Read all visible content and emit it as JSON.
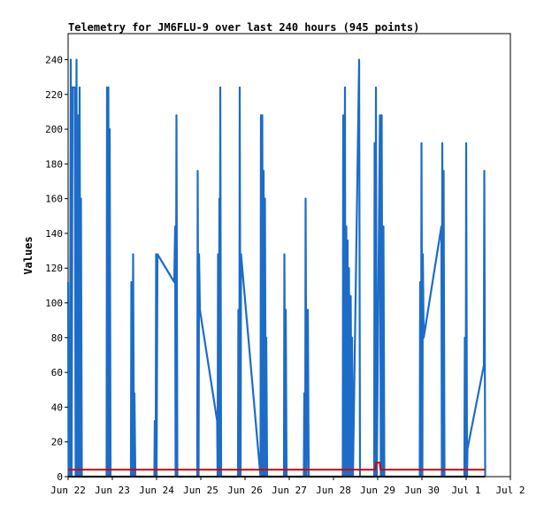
{
  "chart_data": {
    "type": "line",
    "title": "Telemetry for JM6FLU-9 over last 240 hours (945 points)",
    "xlabel": "",
    "ylabel": "Values",
    "ylim": [
      0,
      255
    ],
    "yticks": [
      0,
      20,
      40,
      60,
      80,
      100,
      120,
      140,
      160,
      180,
      200,
      220,
      240
    ],
    "xlim": [
      0,
      10
    ],
    "xticks": [
      {
        "label": "Jun 22",
        "x": 0
      },
      {
        "label": "Jun 23",
        "x": 1
      },
      {
        "label": "Jun 24",
        "x": 2
      },
      {
        "label": "Jun 25",
        "x": 3
      },
      {
        "label": "Jun 26",
        "x": 4
      },
      {
        "label": "Jun 27",
        "x": 5
      },
      {
        "label": "Jun 28",
        "x": 6
      },
      {
        "label": "Jun 29",
        "x": 7
      },
      {
        "label": "Jun 30",
        "x": 8
      },
      {
        "label": "Jul 1",
        "x": 9
      },
      {
        "label": "Jul 2",
        "x": 10
      }
    ],
    "grid": false,
    "series": [
      {
        "color": "#1c6cc8",
        "points": [
          [
            0.0,
            112
          ],
          [
            0.01,
            0
          ],
          [
            0.03,
            80
          ],
          [
            0.04,
            0
          ],
          [
            0.06,
            240
          ],
          [
            0.08,
            0
          ],
          [
            0.1,
            224
          ],
          [
            0.15,
            224
          ],
          [
            0.17,
            0
          ],
          [
            0.19,
            240
          ],
          [
            0.21,
            0
          ],
          [
            0.23,
            208
          ],
          [
            0.25,
            0
          ],
          [
            0.26,
            224
          ],
          [
            0.28,
            0
          ],
          [
            0.29,
            160
          ],
          [
            0.31,
            0
          ],
          [
            0.87,
            0
          ],
          [
            0.88,
            224
          ],
          [
            0.9,
            0
          ],
          [
            0.91,
            224
          ],
          [
            0.93,
            0
          ],
          [
            0.94,
            200
          ],
          [
            0.96,
            0
          ],
          [
            1.42,
            0
          ],
          [
            1.43,
            112
          ],
          [
            1.45,
            0
          ],
          [
            1.47,
            128
          ],
          [
            1.49,
            0
          ],
          [
            1.5,
            48
          ],
          [
            1.52,
            0
          ],
          [
            1.95,
            0
          ],
          [
            1.96,
            32
          ],
          [
            1.98,
            0
          ],
          [
            1.99,
            128
          ],
          [
            2.0,
            0
          ],
          [
            2.02,
            128
          ],
          [
            2.4,
            112
          ],
          [
            2.42,
            144
          ],
          [
            2.43,
            0
          ],
          [
            2.45,
            208
          ],
          [
            2.47,
            0
          ],
          [
            2.92,
            0
          ],
          [
            2.93,
            176
          ],
          [
            2.95,
            0
          ],
          [
            2.96,
            128
          ],
          [
            2.98,
            96
          ],
          [
            3.37,
            32
          ],
          [
            3.38,
            0
          ],
          [
            3.39,
            128
          ],
          [
            3.41,
            0
          ],
          [
            3.42,
            160
          ],
          [
            3.43,
            0
          ],
          [
            3.44,
            224
          ],
          [
            3.46,
            0
          ],
          [
            3.84,
            0
          ],
          [
            3.85,
            96
          ],
          [
            3.87,
            0
          ],
          [
            3.88,
            224
          ],
          [
            3.9,
            0
          ],
          [
            3.91,
            128
          ],
          [
            4.35,
            0
          ],
          [
            4.36,
            208
          ],
          [
            4.38,
            0
          ],
          [
            4.39,
            208
          ],
          [
            4.41,
            0
          ],
          [
            4.42,
            176
          ],
          [
            4.44,
            0
          ],
          [
            4.45,
            160
          ],
          [
            4.47,
            0
          ],
          [
            4.48,
            80
          ],
          [
            4.5,
            0
          ],
          [
            4.88,
            0
          ],
          [
            4.89,
            128
          ],
          [
            4.91,
            0
          ],
          [
            4.92,
            96
          ],
          [
            4.94,
            0
          ],
          [
            5.33,
            0
          ],
          [
            5.34,
            48
          ],
          [
            5.36,
            0
          ],
          [
            5.37,
            160
          ],
          [
            5.39,
            0
          ],
          [
            5.42,
            96
          ],
          [
            5.44,
            0
          ],
          [
            6.21,
            0
          ],
          [
            6.22,
            208
          ],
          [
            6.24,
            0
          ],
          [
            6.26,
            224
          ],
          [
            6.27,
            0
          ],
          [
            6.29,
            144
          ],
          [
            6.31,
            0
          ],
          [
            6.32,
            136
          ],
          [
            6.33,
            0
          ],
          [
            6.35,
            120
          ],
          [
            6.37,
            0
          ],
          [
            6.39,
            104
          ],
          [
            6.41,
            0
          ],
          [
            6.42,
            80
          ],
          [
            6.44,
            0
          ],
          [
            6.58,
            240
          ],
          [
            6.6,
            0
          ],
          [
            6.92,
            0
          ],
          [
            6.93,
            192
          ],
          [
            6.95,
            0
          ],
          [
            6.96,
            224
          ],
          [
            6.98,
            0
          ],
          [
            7.05,
            208
          ],
          [
            7.07,
            0
          ],
          [
            7.09,
            208
          ],
          [
            7.11,
            0
          ],
          [
            7.13,
            144
          ],
          [
            7.15,
            0
          ],
          [
            7.95,
            0
          ],
          [
            7.96,
            112
          ],
          [
            7.98,
            0
          ],
          [
            7.99,
            192
          ],
          [
            8.01,
            0
          ],
          [
            8.02,
            128
          ],
          [
            8.04,
            80
          ],
          [
            8.44,
            144
          ],
          [
            8.45,
            0
          ],
          [
            8.46,
            192
          ],
          [
            8.48,
            0
          ],
          [
            8.49,
            176
          ],
          [
            8.51,
            0
          ],
          [
            8.96,
            0
          ],
          [
            8.97,
            80
          ],
          [
            8.99,
            0
          ],
          [
            9.0,
            192
          ],
          [
            9.02,
            0
          ],
          [
            9.03,
            16
          ],
          [
            9.4,
            64
          ],
          [
            9.41,
            176
          ],
          [
            9.43,
            0
          ]
        ]
      },
      {
        "color": "#d40000",
        "points": [
          [
            0.0,
            4
          ],
          [
            6.95,
            4
          ],
          [
            6.96,
            8
          ],
          [
            7.05,
            8
          ],
          [
            7.06,
            4
          ],
          [
            9.43,
            4
          ]
        ]
      },
      {
        "color": "#000000",
        "points": [
          [
            0.0,
            0
          ],
          [
            9.43,
            0
          ]
        ]
      }
    ]
  }
}
